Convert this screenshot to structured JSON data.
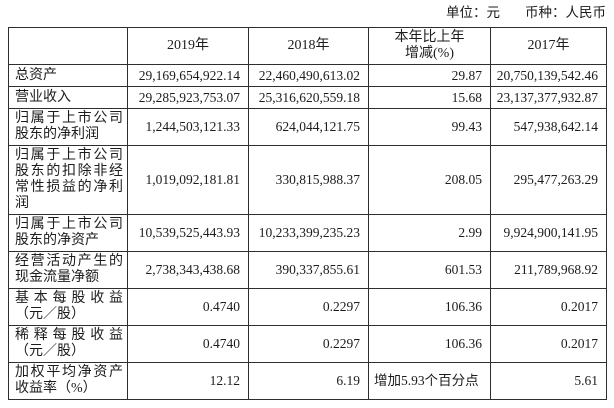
{
  "meta": {
    "unit_label": "单位：元",
    "currency_label": "币种：人民币"
  },
  "colors": {
    "border": "#2e2e2e",
    "text": "#1c1c1c",
    "background": "#ffffff"
  },
  "table": {
    "columns": [
      "",
      "2019年",
      "2018年",
      "本年比上年\n增减(%)",
      "2017年"
    ],
    "rows": [
      {
        "label": "总资产",
        "y2019": "29,169,654,922.14",
        "y2018": "22,460,490,613.02",
        "change": "29.87",
        "y2017": "20,750,139,542.46"
      },
      {
        "label": "营业收入",
        "y2019": "29,285,923,753.07",
        "y2018": "25,316,620,559.18",
        "change": "15.68",
        "y2017": "23,137,377,932.87"
      },
      {
        "label": "归属于上市公司股东的净利润",
        "y2019": "1,244,503,121.33",
        "y2018": "624,044,121.75",
        "change": "99.43",
        "y2017": "547,938,642.14"
      },
      {
        "label": "归属于上市公司股东的扣除非经常性损益的净利润",
        "y2019": "1,019,092,181.81",
        "y2018": "330,815,988.37",
        "change": "208.05",
        "y2017": "295,477,263.29"
      },
      {
        "label": "归属于上市公司股东的净资产",
        "y2019": "10,539,525,443.93",
        "y2018": "10,233,399,235.23",
        "change": "2.99",
        "y2017": "9,924,900,141.95"
      },
      {
        "label": "经营活动产生的现金流量净额",
        "y2019": "2,738,343,438.68",
        "y2018": "390,337,855.61",
        "change": "601.53",
        "y2017": "211,789,968.92"
      },
      {
        "label": "基本每股收益（元／股）",
        "y2019": "0.4740",
        "y2018": "0.2297",
        "change": "106.36",
        "y2017": "0.2017"
      },
      {
        "label": "稀释每股收益（元／股）",
        "y2019": "0.4740",
        "y2018": "0.2297",
        "change": "106.36",
        "y2017": "0.2017"
      },
      {
        "label": "加权平均净资产收益率（%）",
        "y2019": "12.12",
        "y2018": "6.19",
        "change": "增加5.93个百分点",
        "y2017": "5.61"
      }
    ]
  }
}
